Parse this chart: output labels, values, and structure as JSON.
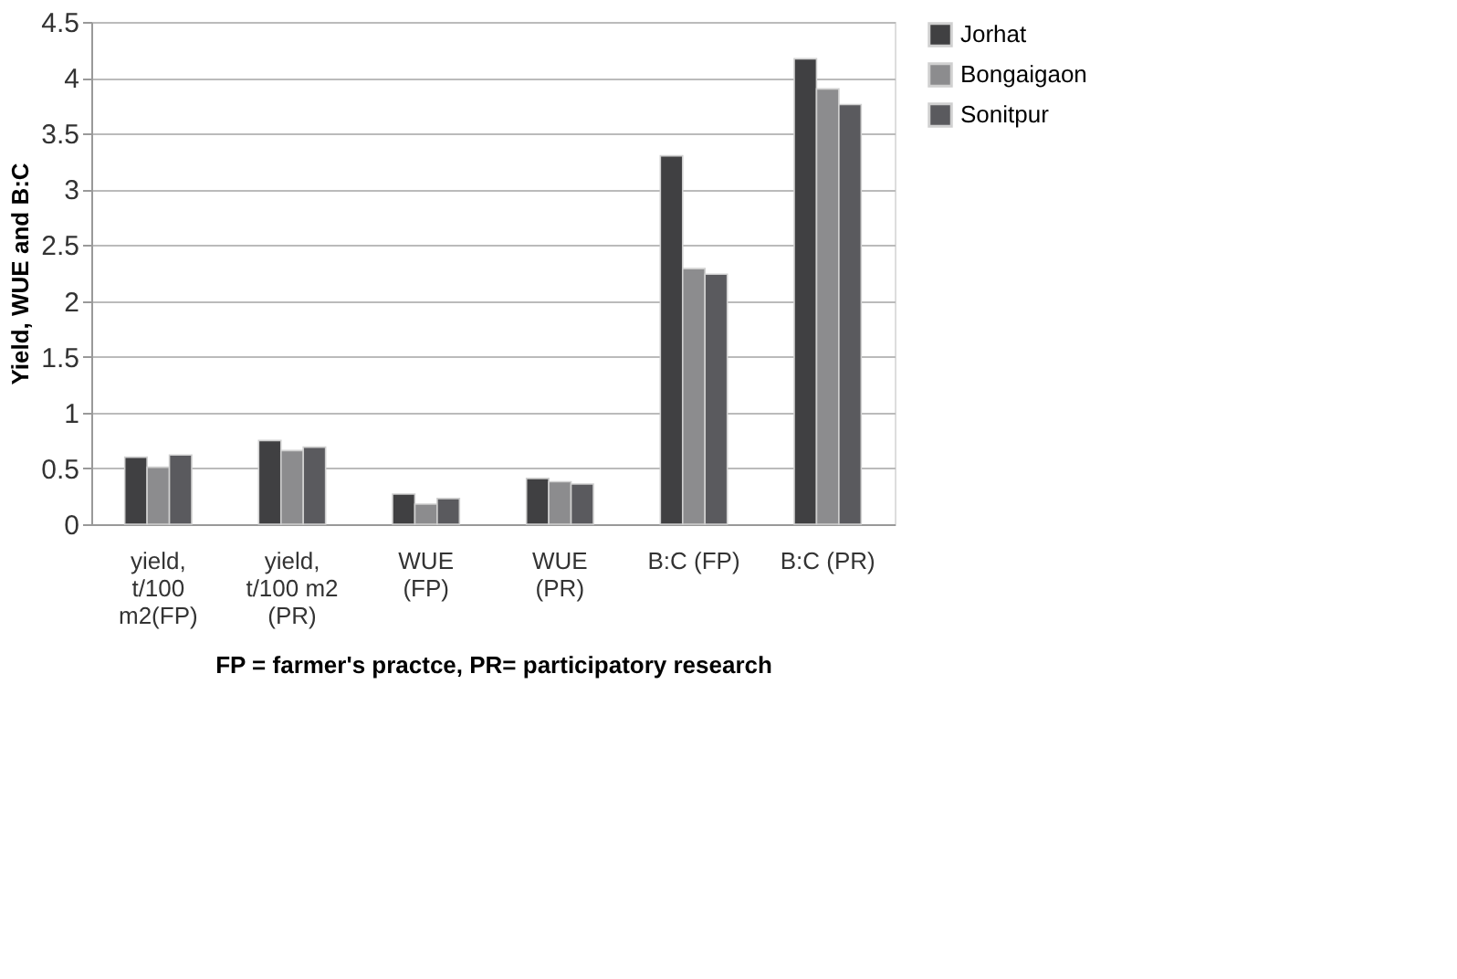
{
  "chart_data": {
    "type": "bar",
    "ylabel": "Yield, WUE and B:C",
    "xlabel": "FP = farmer's practce, PR= participatory research",
    "categories": [
      "yield,\nt/100\nm2(FP)",
      "yield,\nt/100 m2\n(PR)",
      "WUE\n(FP)",
      "WUE\n(PR)",
      "B:C  (FP)",
      "B:C (PR)"
    ],
    "series": [
      {
        "name": "Jorhat",
        "color": "#404042",
        "values": [
          0.6,
          0.75,
          0.27,
          0.41,
          3.3,
          4.17
        ]
      },
      {
        "name": "Bongaigaon",
        "color": "#8c8c8e",
        "values": [
          0.51,
          0.66,
          0.18,
          0.38,
          2.29,
          3.9
        ]
      },
      {
        "name": "Sonitpur",
        "color": "#5a5a5e",
        "values": [
          0.62,
          0.69,
          0.23,
          0.36,
          2.24,
          3.76
        ]
      }
    ],
    "ylim": [
      0,
      4.5
    ],
    "yticks": [
      0,
      0.5,
      1,
      1.5,
      2,
      2.5,
      3,
      3.5,
      4,
      4.5
    ],
    "grid": "y",
    "legend": "right"
  }
}
